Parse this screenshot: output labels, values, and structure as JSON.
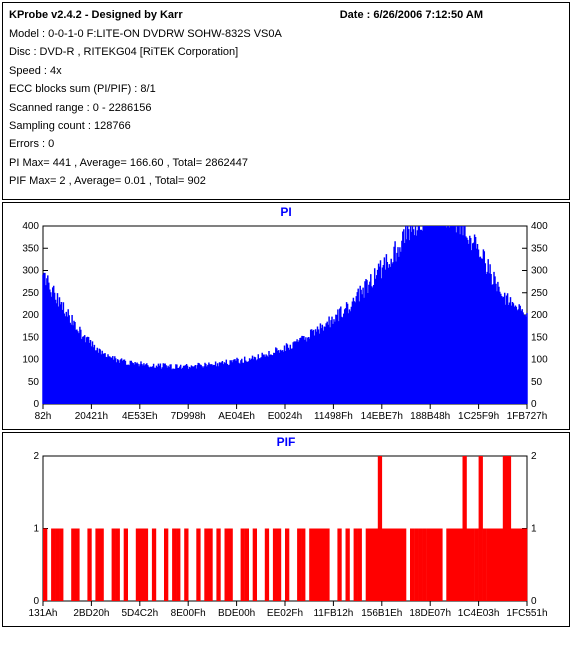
{
  "header": {
    "title": "KProbe v2.4.2 - Designed by Karr",
    "date_label": "Date : 6/26/2006 7:12:50 AM"
  },
  "info": {
    "model": "Model : 0-0-1-0 F:LITE-ON DVDRW SOHW-832S  VS0A",
    "disc": "Disc : DVD-R , RITEKG04 [RiTEK Corporation]",
    "speed": "Speed : 4x",
    "ecc": "ECC blocks sum (PI/PIF) : 8/1",
    "scanned": "Scanned range : 0 - 2286156",
    "sampling": "Sampling count : 128766",
    "errors": "Errors : 0",
    "pimax": "PI Max= 441 , Average= 166.60 , Total= 2862447",
    "pifmax": "PIF Max= 2 , Average= 0.01 , Total= 902"
  },
  "pi_chart": {
    "title": "PI",
    "color": "#0000ff",
    "background": "#ffffff",
    "xaxis_labels": [
      "82h",
      "20421h",
      "4E53Eh",
      "7D998h",
      "AE04Eh",
      "E0024h",
      "11498Fh",
      "14EBE7h",
      "188B48h",
      "1C25F9h",
      "1FB727h"
    ],
    "yaxis": {
      "min": 0,
      "max": 400,
      "ticks": [
        0,
        50,
        100,
        150,
        200,
        250,
        300,
        350,
        400
      ]
    },
    "values": [
      290,
      260,
      230,
      200,
      175,
      150,
      135,
      120,
      110,
      100,
      95,
      92,
      90,
      88,
      86,
      85,
      84,
      84,
      85,
      86,
      88,
      90,
      92,
      95,
      98,
      102,
      106,
      110,
      116,
      122,
      130,
      138,
      148,
      160,
      172,
      186,
      200,
      216,
      234,
      254,
      276,
      298,
      320,
      345,
      370,
      395,
      415,
      425,
      430,
      428,
      420,
      405,
      380,
      350,
      315,
      280,
      250,
      225,
      210,
      195
    ]
  },
  "pif_chart": {
    "title": "PIF",
    "color": "#ff0000",
    "background": "#ffffff",
    "xaxis_labels": [
      "131Ah",
      "2BD20h",
      "5D4C2h",
      "8E00Fh",
      "BDE00h",
      "EE02Fh",
      "11FB12h",
      "156B1Eh",
      "18DE07h",
      "1C4E03h",
      "1FC551h"
    ],
    "yaxis": {
      "min": 0,
      "max": 2,
      "ticks": [
        0,
        1,
        2
      ]
    },
    "values": [
      1,
      0,
      1,
      1,
      1,
      0,
      0,
      1,
      1,
      0,
      0,
      1,
      0,
      1,
      1,
      0,
      0,
      1,
      1,
      0,
      1,
      0,
      0,
      1,
      1,
      1,
      0,
      1,
      0,
      0,
      1,
      0,
      1,
      1,
      0,
      1,
      0,
      0,
      1,
      0,
      1,
      1,
      0,
      1,
      0,
      1,
      1,
      0,
      0,
      1,
      1,
      0,
      1,
      0,
      0,
      1,
      0,
      1,
      1,
      0,
      1,
      0,
      0,
      1,
      1,
      0,
      1,
      1,
      1,
      1,
      1,
      0,
      0,
      1,
      0,
      1,
      0,
      1,
      1,
      0,
      1,
      1,
      1,
      2,
      1,
      1,
      1,
      1,
      1,
      1,
      0,
      1,
      1,
      1,
      1,
      1,
      1,
      1,
      1,
      0,
      1,
      1,
      1,
      1,
      2,
      1,
      1,
      1,
      2,
      1,
      1,
      1,
      1,
      1,
      2,
      2,
      1,
      1,
      1,
      1
    ]
  }
}
